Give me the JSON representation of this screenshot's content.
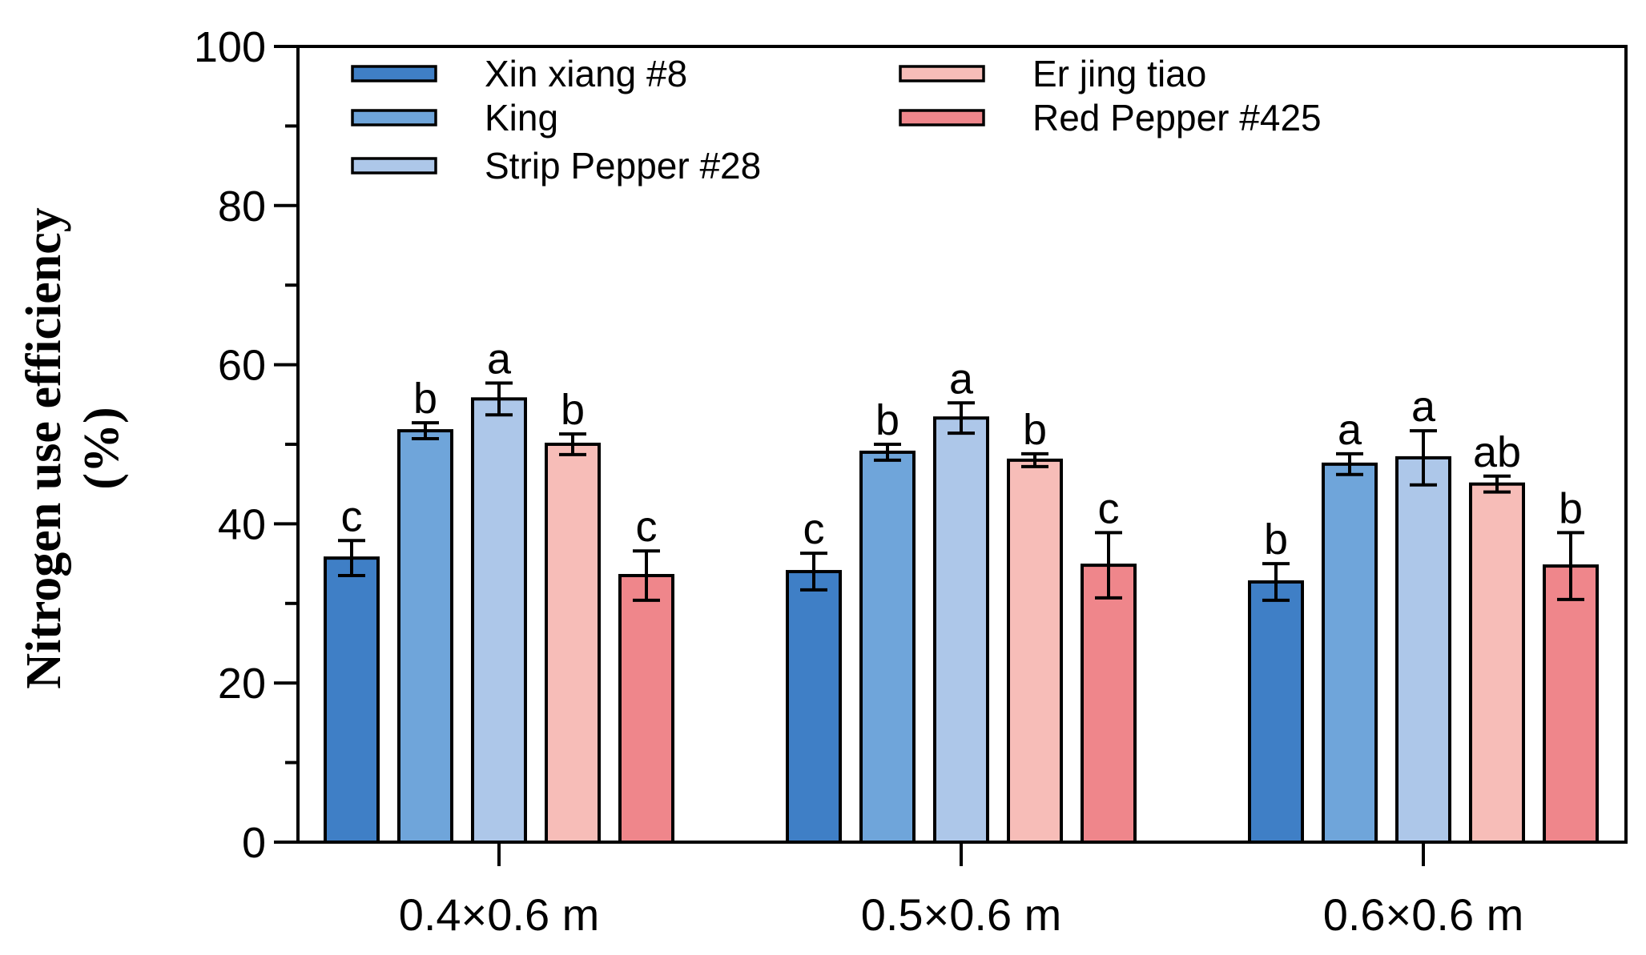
{
  "chart_data": {
    "type": "bar",
    "title": "",
    "xlabel": "",
    "ylabel_line1": "Nitrogen use efficiency",
    "ylabel_line2": "(%)",
    "ylim": [
      0,
      100
    ],
    "y_major_ticks": [
      0,
      20,
      40,
      60,
      80,
      100
    ],
    "y_minor_ticks": [
      10,
      30,
      50,
      70,
      90
    ],
    "categories": [
      "0.4×0.6 m",
      "0.5×0.6 m",
      "0.6×0.6 m"
    ],
    "legend_position": "top",
    "series": [
      {
        "name": "Xin xiang #8",
        "color": "#3f7fc6",
        "values": [
          35.7,
          34.0,
          32.7
        ],
        "errors": [
          2.2,
          2.3,
          2.3
        ],
        "letters": [
          "c",
          "c",
          "b"
        ]
      },
      {
        "name": "King",
        "color": "#6fa5da",
        "values": [
          51.7,
          49.0,
          47.5
        ],
        "errors": [
          1.0,
          1.0,
          1.3
        ],
        "letters": [
          "b",
          "b",
          "a"
        ]
      },
      {
        "name": "Strip Pepper #28",
        "color": "#adc7e9",
        "values": [
          55.7,
          53.3,
          48.3
        ],
        "errors": [
          2.0,
          1.9,
          3.4
        ],
        "letters": [
          "a",
          "a",
          "a"
        ]
      },
      {
        "name": "Er jing tiao",
        "color": "#f7bdb8",
        "values": [
          50.0,
          48.0,
          45.0
        ],
        "errors": [
          1.3,
          0.8,
          1.0
        ],
        "letters": [
          "b",
          "b",
          "ab"
        ]
      },
      {
        "name": "Red Pepper #425",
        "color": "#ef868b",
        "values": [
          33.5,
          34.8,
          34.7
        ],
        "errors": [
          3.1,
          4.1,
          4.2
        ],
        "letters": [
          "c",
          "c",
          "b"
        ]
      }
    ]
  }
}
